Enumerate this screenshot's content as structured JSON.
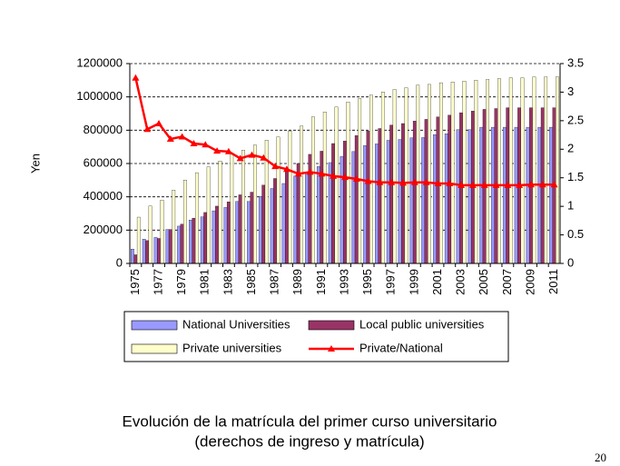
{
  "chart_data": {
    "type": "bar",
    "ylabel": "Yen",
    "categories": [
      "1975",
      null,
      "1977",
      null,
      "1979",
      null,
      "1981",
      null,
      "1983",
      null,
      "1985",
      null,
      "1987",
      null,
      "1989",
      null,
      "1991",
      null,
      "1993",
      null,
      "1995",
      null,
      "1997",
      null,
      "1999",
      null,
      "2001",
      null,
      "2003",
      null,
      "2005",
      null,
      "2007",
      null,
      "2009",
      null,
      "2011"
    ],
    "series": [
      {
        "name": "National Universities",
        "color": "#9999ff",
        "values": [
          86000,
          146000,
          156000,
          204000,
          224000,
          260000,
          280000,
          316000,
          336000,
          372000,
          372000,
          402000,
          450000,
          480000,
          525000,
          545600,
          581600,
          605600,
          641600,
          671600,
          707600,
          717600,
          739200,
          744200,
          753800,
          755800,
          773800,
          778800,
          802800,
          802800,
          817800,
          817800,
          817800,
          817800,
          817800,
          817800,
          817800
        ]
      },
      {
        "name": "Local public universities",
        "color": "#993366",
        "values": [
          52000,
          137000,
          150000,
          204000,
          236000,
          272000,
          306000,
          344000,
          370000,
          412000,
          428000,
          470000,
          510000,
          557000,
          600000,
          655000,
          674000,
          720000,
          735000,
          768000,
          795000,
          810000,
          831000,
          840000,
          855000,
          865000,
          880000,
          890000,
          905000,
          915000,
          925000,
          930000,
          935000,
          935000,
          935000,
          935000,
          935000
        ]
      },
      {
        "name": "Private universities",
        "color": "#ffffcc",
        "values": [
          278000,
          345000,
          380000,
          440000,
          500000,
          545000,
          580000,
          615000,
          655000,
          680000,
          710000,
          740000,
          760000,
          795000,
          825000,
          880000,
          910000,
          940000,
          970000,
          990000,
          1010000,
          1030000,
          1045000,
          1055000,
          1070000,
          1075000,
          1085000,
          1090000,
          1095000,
          1100000,
          1105000,
          1110000,
          1115000,
          1115000,
          1120000,
          1120000,
          1120000
        ]
      },
      {
        "name": "Private/National",
        "type": "line",
        "axis": "y2",
        "color": "#ff0000",
        "values": [
          3.25,
          2.35,
          2.45,
          2.18,
          2.22,
          2.1,
          2.08,
          1.97,
          1.96,
          1.84,
          1.9,
          1.85,
          1.7,
          1.65,
          1.57,
          1.6,
          1.57,
          1.53,
          1.51,
          1.48,
          1.44,
          1.42,
          1.42,
          1.41,
          1.42,
          1.42,
          1.4,
          1.4,
          1.37,
          1.37,
          1.37,
          1.37,
          1.37,
          1.37,
          1.38,
          1.38,
          1.38
        ]
      }
    ],
    "ylim": [
      0,
      1200000
    ],
    "yticks": [
      0,
      200000,
      400000,
      600000,
      800000,
      1000000,
      1200000
    ],
    "y2lim": [
      0,
      3.5
    ],
    "y2ticks": [
      0,
      0.5,
      1,
      1.5,
      2,
      2.5,
      3,
      3.5
    ],
    "grid": true,
    "legend": "bottom"
  },
  "caption": [
    "Evolución de la matrícula del primer curso universitario",
    "(derechos de ingreso y matrícula)"
  ],
  "page_number": "20"
}
